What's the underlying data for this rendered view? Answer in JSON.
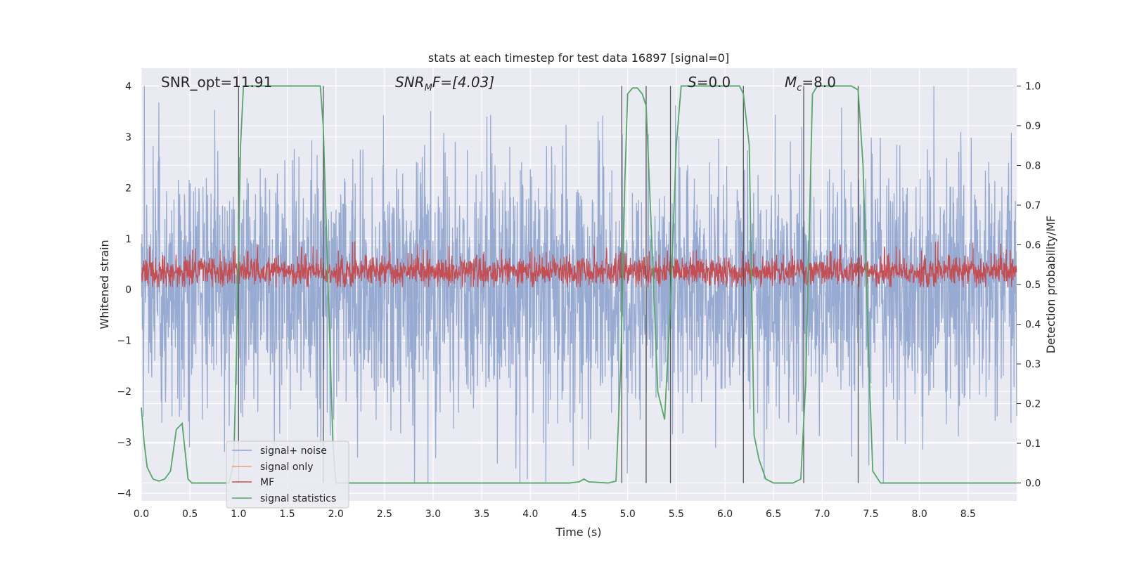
{
  "chart_data": {
    "type": "line",
    "title": "stats at each timestep for test data 16897 [signal=0]",
    "xlabel": "Time (s)",
    "ylabel_left": "Whitened strain",
    "ylabel_right": "Detection probability/MF",
    "xlim": [
      0.0,
      9.0
    ],
    "ylim_left": [
      -4.15,
      4.35
    ],
    "ylim_right": [
      -0.045,
      1.045
    ],
    "x_ticks": [
      "0.0",
      "0.5",
      "1.0",
      "1.5",
      "2.0",
      "2.5",
      "3.0",
      "3.5",
      "4.0",
      "4.5",
      "5.0",
      "5.5",
      "6.0",
      "6.5",
      "7.0",
      "7.5",
      "8.0",
      "8.5"
    ],
    "x_tick_values": [
      0.0,
      0.5,
      1.0,
      1.5,
      2.0,
      2.5,
      3.0,
      3.5,
      4.0,
      4.5,
      5.0,
      5.5,
      6.0,
      6.5,
      7.0,
      7.5,
      8.0,
      8.5
    ],
    "y_left_ticks": [
      "4",
      "3",
      "2",
      "1",
      "0",
      "−1",
      "−2",
      "−3",
      "−4"
    ],
    "y_left_tick_values": [
      4,
      3,
      2,
      1,
      0,
      -1,
      -2,
      -3,
      -4
    ],
    "y_right_ticks": [
      "1.0",
      "0.9",
      "0.8",
      "0.7",
      "0.6",
      "0.5",
      "0.4",
      "0.3",
      "0.2",
      "0.1",
      "0.0"
    ],
    "y_right_tick_values": [
      1.0,
      0.9,
      0.8,
      0.7,
      0.6,
      0.5,
      0.4,
      0.3,
      0.2,
      0.1,
      0.0
    ],
    "annotations": {
      "snr_opt": "SNR_opt=11.91",
      "snr_mf_main": "SNR",
      "snr_mf_sub": "M",
      "snr_mf_tail": "F=[4.03]",
      "s_main": "S",
      "s_tail": "=0.0",
      "mc_main": "M",
      "mc_sub": "c",
      "mc_tail": "=8.0"
    },
    "vertical_markers": [
      1.0,
      1.87,
      4.94,
      5.19,
      5.44,
      6.19,
      6.81,
      7.37
    ],
    "series": [
      {
        "name": "signal+ noise",
        "color": "#8ea3cd",
        "axis": "left",
        "description": "whitened strain noise, approx. range -3.8 to 4.0"
      },
      {
        "name": "signal only",
        "color": "#e8a07f",
        "axis": "left",
        "values": "zero (signal=0)"
      },
      {
        "name": "MF",
        "color": "#c44e52",
        "axis": "left",
        "description": "matched-filter output, approx. range 0.05 to 0.95"
      },
      {
        "name": "signal statistics",
        "color": "#55a868",
        "axis": "right",
        "x": [
          0.0,
          0.03,
          0.06,
          0.12,
          0.18,
          0.24,
          0.3,
          0.36,
          0.42,
          0.48,
          0.52,
          0.6,
          0.8,
          0.9,
          0.95,
          0.98,
          1.02,
          1.05,
          1.08,
          1.2,
          1.5,
          1.84,
          1.87,
          1.92,
          1.97,
          2.0,
          2.2,
          3.0,
          4.0,
          4.4,
          4.5,
          4.55,
          4.6,
          4.8,
          4.88,
          4.93,
          4.97,
          5.0,
          5.05,
          5.1,
          5.15,
          5.19,
          5.25,
          5.31,
          5.38,
          5.44,
          5.5,
          5.55,
          5.7,
          6.0,
          6.15,
          6.19,
          6.25,
          6.3,
          6.35,
          6.42,
          6.5,
          6.7,
          6.78,
          6.83,
          6.9,
          6.95,
          7.0,
          7.3,
          7.37,
          7.42,
          7.48,
          7.52,
          7.6,
          8.0,
          9.0
        ],
        "values": [
          0.19,
          0.1,
          0.04,
          0.01,
          0.005,
          0.01,
          0.03,
          0.135,
          0.15,
          0.01,
          0.0,
          0.0,
          0.0,
          0.0,
          0.05,
          0.35,
          0.85,
          1.0,
          1.0,
          1.0,
          1.0,
          1.0,
          0.9,
          0.5,
          0.1,
          0.0,
          0.0,
          0.0,
          0.0,
          0.0,
          0.003,
          0.01,
          0.003,
          0.0,
          0.005,
          0.3,
          0.75,
          0.98,
          0.995,
          0.995,
          0.98,
          0.95,
          0.6,
          0.23,
          0.16,
          0.45,
          0.85,
          1.0,
          1.0,
          1.0,
          1.0,
          0.98,
          0.85,
          0.12,
          0.06,
          0.01,
          0.0,
          0.0,
          0.01,
          0.25,
          0.98,
          1.0,
          1.0,
          1.0,
          0.99,
          0.8,
          0.3,
          0.03,
          0.0,
          0.0,
          0.0
        ]
      }
    ],
    "legend_position": "lower-left"
  }
}
